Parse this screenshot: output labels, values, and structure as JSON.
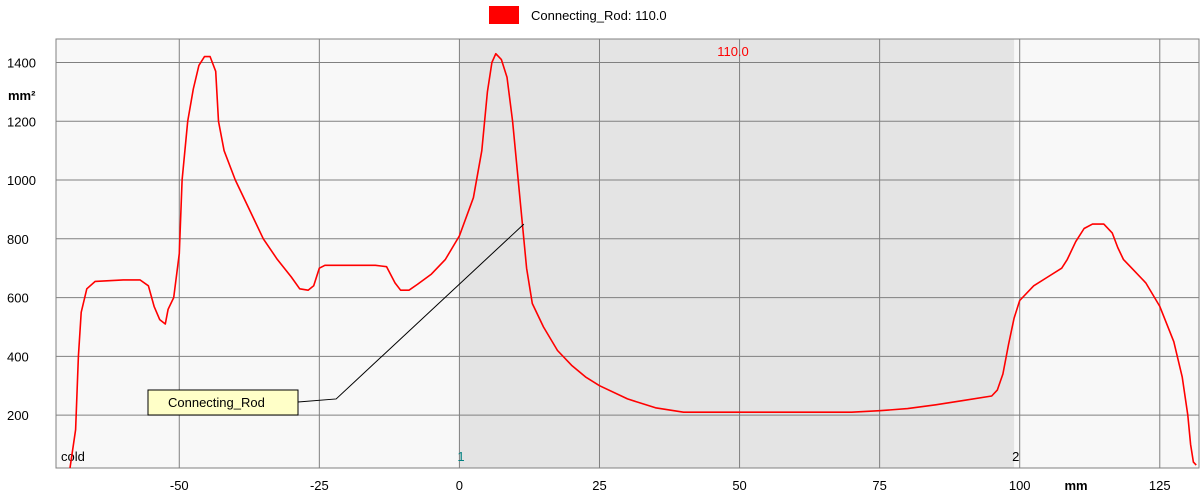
{
  "chart_data": {
    "type": "line",
    "legend": {
      "entries": [
        {
          "label": "Connecting_Rod: 110.0",
          "color": "#ff0000"
        }
      ],
      "placement": "top-center"
    },
    "top_marker_label": "110.0",
    "x_unit": "mm",
    "y_unit": "mm²",
    "xlim": [
      -72,
      132
    ],
    "ylim": [
      20,
      1480
    ],
    "x_ticks": [
      -50,
      -25,
      0,
      25,
      50,
      75,
      100,
      125
    ],
    "y_ticks": [
      200,
      400,
      600,
      800,
      1000,
      1200,
      1400
    ],
    "grid": true,
    "shaded_region": {
      "from": 0,
      "to": 99,
      "color": "#e4e4e4"
    },
    "markers": [
      {
        "label": "cold",
        "x": -71,
        "color": "#000000"
      },
      {
        "label": "1",
        "x": 0,
        "color": "#008080"
      },
      {
        "label": "2",
        "x": 99,
        "color": "#000000"
      }
    ],
    "annotation": {
      "label": "Connecting_Rod",
      "point": {
        "x": 11.5,
        "y": 850
      },
      "elbow": {
        "x": -22,
        "y": 255
      }
    },
    "series": [
      {
        "name": "Connecting_Rod",
        "color": "#ff0000",
        "points": [
          [
            -69.5,
            20
          ],
          [
            -68.5,
            150
          ],
          [
            -68,
            400
          ],
          [
            -67.5,
            550
          ],
          [
            -66.5,
            630
          ],
          [
            -65,
            655
          ],
          [
            -60,
            660
          ],
          [
            -57,
            660
          ],
          [
            -55.5,
            640
          ],
          [
            -54.5,
            570
          ],
          [
            -53.5,
            525
          ],
          [
            -52.5,
            510
          ],
          [
            -52,
            560
          ],
          [
            -51,
            600
          ],
          [
            -50,
            750
          ],
          [
            -49.5,
            1000
          ],
          [
            -48.5,
            1200
          ],
          [
            -47.5,
            1310
          ],
          [
            -46.5,
            1390
          ],
          [
            -45.5,
            1420
          ],
          [
            -44.5,
            1420
          ],
          [
            -43.5,
            1370
          ],
          [
            -43,
            1200
          ],
          [
            -42,
            1100
          ],
          [
            -40,
            1000
          ],
          [
            -37.5,
            900
          ],
          [
            -35,
            800
          ],
          [
            -32.5,
            730
          ],
          [
            -30,
            670
          ],
          [
            -28.5,
            630
          ],
          [
            -27,
            625
          ],
          [
            -26,
            640
          ],
          [
            -25,
            700
          ],
          [
            -24,
            710
          ],
          [
            -20,
            710
          ],
          [
            -15,
            710
          ],
          [
            -13,
            705
          ],
          [
            -11.5,
            650
          ],
          [
            -10.5,
            625
          ],
          [
            -9,
            625
          ],
          [
            -7.5,
            645
          ],
          [
            -5,
            680
          ],
          [
            -2.5,
            730
          ],
          [
            0,
            810
          ],
          [
            2.5,
            940
          ],
          [
            4,
            1100
          ],
          [
            5,
            1300
          ],
          [
            5.8,
            1400
          ],
          [
            6.5,
            1430
          ],
          [
            7.5,
            1410
          ],
          [
            8.5,
            1350
          ],
          [
            9.5,
            1200
          ],
          [
            11,
            900
          ],
          [
            12,
            700
          ],
          [
            13,
            580
          ],
          [
            15,
            500
          ],
          [
            17.5,
            420
          ],
          [
            20,
            370
          ],
          [
            22.5,
            330
          ],
          [
            25,
            300
          ],
          [
            30,
            255
          ],
          [
            35,
            225
          ],
          [
            40,
            210
          ],
          [
            50,
            210
          ],
          [
            60,
            210
          ],
          [
            70,
            210
          ],
          [
            75,
            215
          ],
          [
            80,
            222
          ],
          [
            85,
            235
          ],
          [
            90,
            250
          ],
          [
            95,
            265
          ],
          [
            96,
            285
          ],
          [
            97,
            340
          ],
          [
            98,
            440
          ],
          [
            99,
            530
          ],
          [
            100,
            590
          ],
          [
            102.5,
            640
          ],
          [
            105,
            670
          ],
          [
            107.5,
            700
          ],
          [
            108.5,
            730
          ],
          [
            110,
            790
          ],
          [
            111.5,
            835
          ],
          [
            113,
            850
          ],
          [
            115,
            850
          ],
          [
            116.5,
            820
          ],
          [
            117.5,
            770
          ],
          [
            118.5,
            730
          ],
          [
            120,
            700
          ],
          [
            122.5,
            650
          ],
          [
            125,
            570
          ],
          [
            127.5,
            450
          ],
          [
            129,
            330
          ],
          [
            130,
            200
          ],
          [
            130.5,
            100
          ],
          [
            131,
            40
          ],
          [
            131.5,
            30
          ]
        ]
      }
    ]
  }
}
